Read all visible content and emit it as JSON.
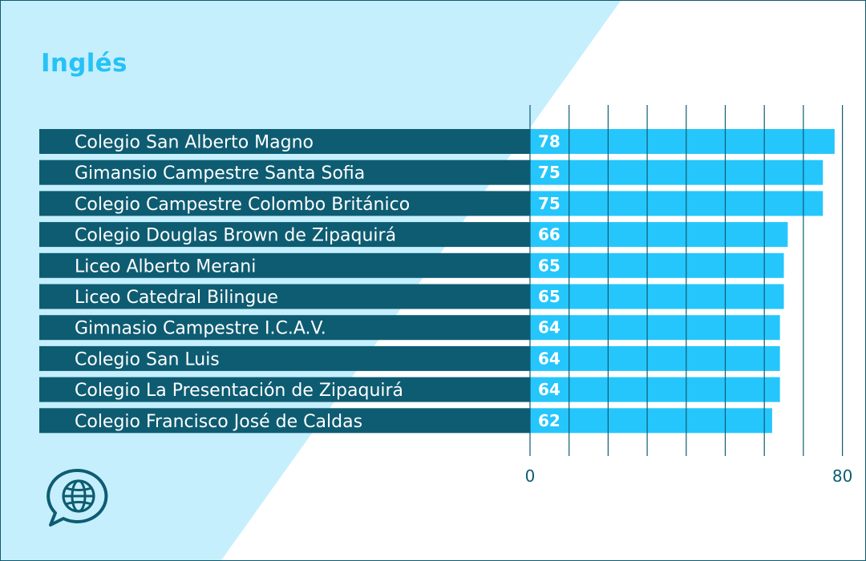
{
  "colors": {
    "background": "#ffffff",
    "accent_triangle": "#c5effd",
    "title": "#27c2f5",
    "label_band": "#0e5c72",
    "bar": "#25c6fc",
    "grid": "#0e5c72"
  },
  "logo": {
    "icon": "globe-speech-bubble-icon"
  },
  "chart_data": {
    "type": "bar",
    "orientation": "horizontal",
    "title": "Inglés",
    "xlabel": "",
    "ylabel": "",
    "xlim": [
      0,
      80
    ],
    "x_tick_labels": [
      "0",
      "80"
    ],
    "gridlines": 8,
    "grid": true,
    "categories": [
      "Colegio San Alberto Magno",
      "Gimansio Campestre Santa Sofia",
      "Colegio Campestre Colombo Británico",
      "Colegio Douglas Brown de Zipaquirá",
      "Liceo Alberto Merani",
      "Liceo Catedral Bilingue",
      "Gimnasio Campestre I.C.A.V.",
      "Colegio San Luis",
      "Colegio La Presentación de Zipaquirá",
      "Colegio Francisco José de Caldas"
    ],
    "values": [
      78,
      75,
      75,
      66,
      65,
      65,
      64,
      64,
      64,
      62
    ],
    "value_labels": [
      "78",
      "75",
      "75",
      "66",
      "65",
      "65",
      "64",
      "64",
      "64",
      "62"
    ]
  }
}
